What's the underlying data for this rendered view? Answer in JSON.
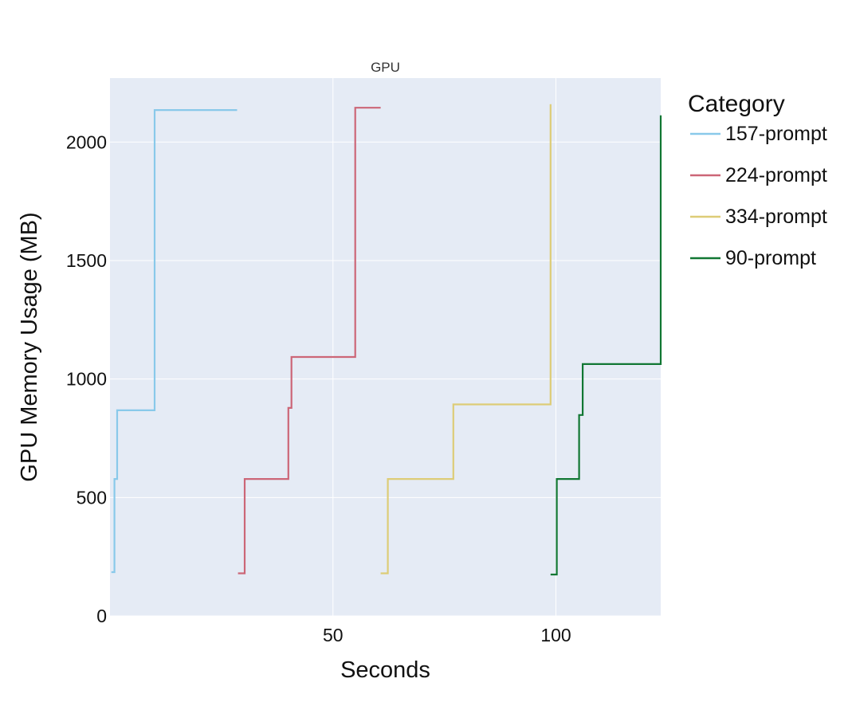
{
  "chart_data": {
    "type": "line",
    "line_shape": "step",
    "title": "GPU",
    "xlabel": "Seconds",
    "ylabel": "GPU Memory Usage (MB)",
    "xlim": [
      0,
      123.5
    ],
    "ylim": [
      0,
      2270
    ],
    "x_ticks": [
      50,
      100
    ],
    "y_ticks": [
      0,
      500,
      1000,
      1500,
      2000
    ],
    "grid": true,
    "legend": {
      "title": "Category",
      "position": "right"
    },
    "plot_background": "#e5ebf5",
    "series": [
      {
        "name": "157-prompt",
        "color": "#89c9ea",
        "x": [
          0.3,
          0.9,
          1.0,
          1.6,
          10.0,
          28.5
        ],
        "y": [
          185,
          185,
          578,
          868,
          2135,
          2135
        ]
      },
      {
        "name": "224-prompt",
        "color": "#cc6677",
        "x": [
          28.7,
          29.6,
          30.2,
          40.0,
          40.7,
          55.0,
          60.7
        ],
        "y": [
          180,
          180,
          578,
          878,
          1093,
          2145,
          2145
        ]
      },
      {
        "name": "334-prompt",
        "color": "#ddcc77",
        "x": [
          60.7,
          61.7,
          62.3,
          77.0,
          98.8
        ],
        "y": [
          180,
          180,
          578,
          893,
          2160
        ]
      },
      {
        "name": "90-prompt",
        "color": "#117733",
        "x": [
          98.8,
          99.6,
          100.2,
          105.2,
          106.0,
          123.5
        ],
        "y": [
          175,
          175,
          578,
          848,
          1063,
          2113
        ]
      }
    ]
  }
}
